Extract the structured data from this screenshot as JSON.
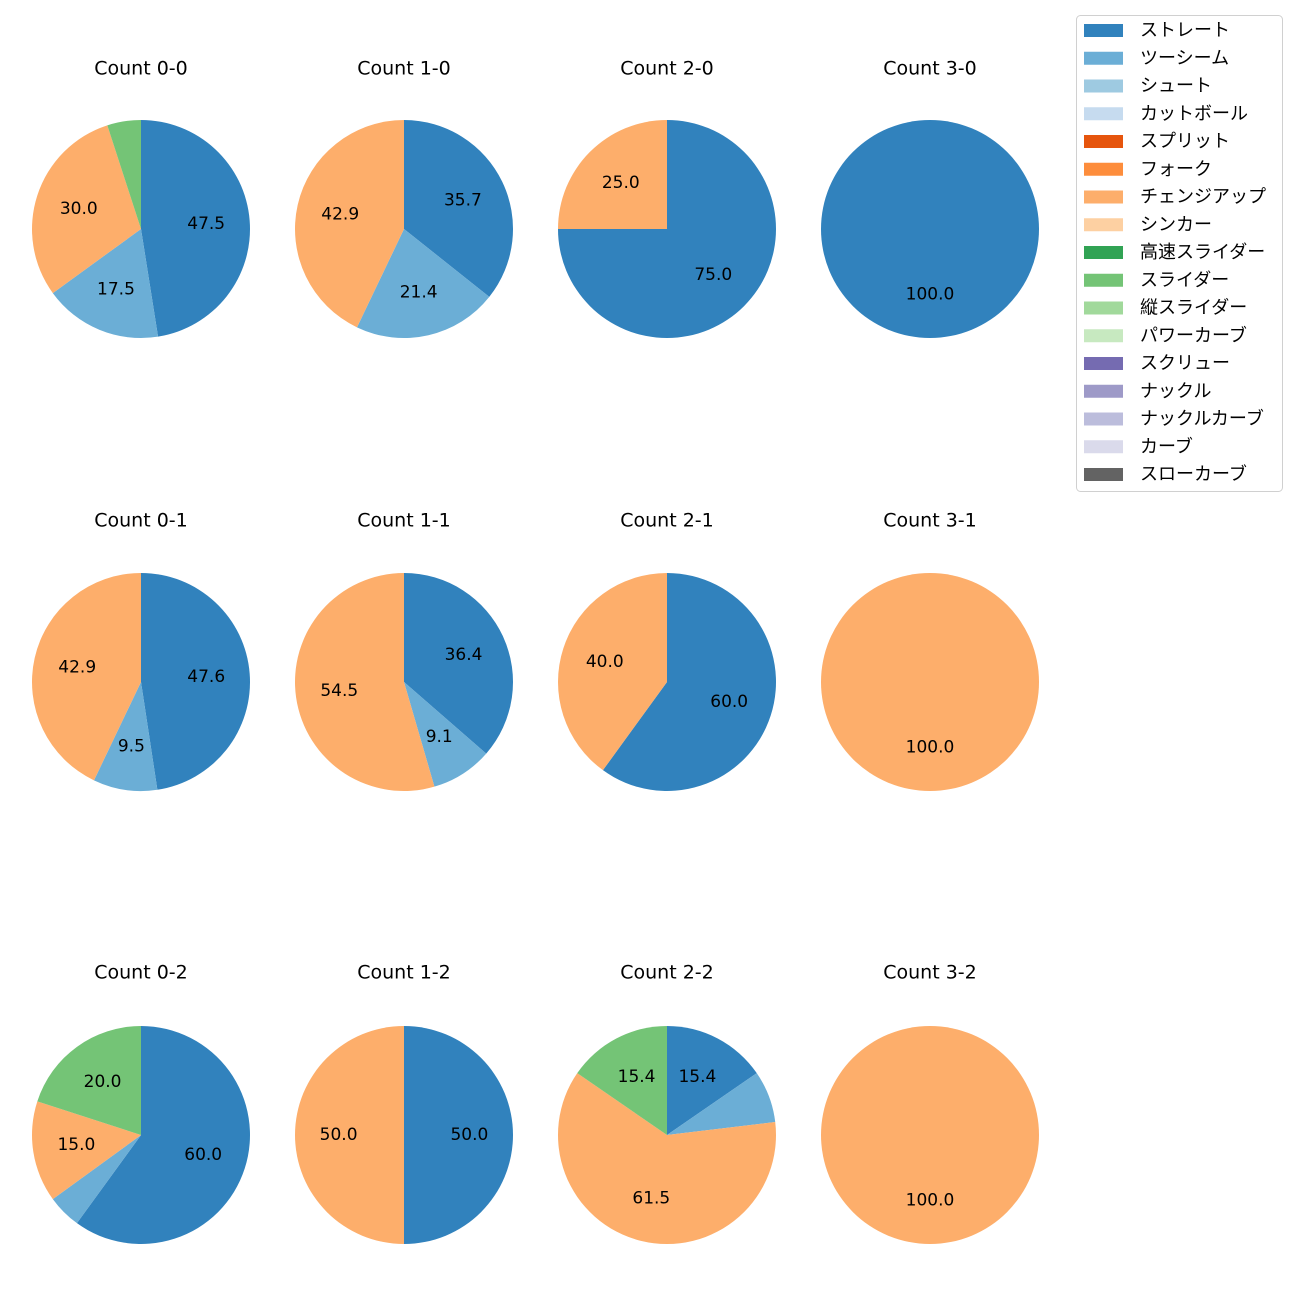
{
  "legend": [
    {
      "name": "ストレート",
      "color": "#3182bd"
    },
    {
      "name": "ツーシーム",
      "color": "#6baed6"
    },
    {
      "name": "シュート",
      "color": "#9ecae1"
    },
    {
      "name": "カットボール",
      "color": "#c6dbef"
    },
    {
      "name": "スプリット",
      "color": "#e6550d"
    },
    {
      "name": "フォーク",
      "color": "#fd8d3c"
    },
    {
      "name": "チェンジアップ",
      "color": "#fdae6b"
    },
    {
      "name": "シンカー",
      "color": "#fdd0a2"
    },
    {
      "name": "高速スライダー",
      "color": "#31a354"
    },
    {
      "name": "スライダー",
      "color": "#74c476"
    },
    {
      "name": "縦スライダー",
      "color": "#a1d99b"
    },
    {
      "name": "パワーカーブ",
      "color": "#c7e9c0"
    },
    {
      "name": "スクリュー",
      "color": "#756bb1"
    },
    {
      "name": "ナックル",
      "color": "#9e9ac8"
    },
    {
      "name": "ナックルカーブ",
      "color": "#bcbddc"
    },
    {
      "name": "カーブ",
      "color": "#dadaeb"
    },
    {
      "name": "スローカーブ",
      "color": "#636363"
    }
  ],
  "chart_data": [
    {
      "type": "pie",
      "title": "Count 0-0",
      "slices": [
        {
          "category": "ストレート",
          "value": 47.5,
          "label": "47.5"
        },
        {
          "category": "ツーシーム",
          "value": 17.5,
          "label": "17.5"
        },
        {
          "category": "チェンジアップ",
          "value": 30.0,
          "label": "30.0"
        },
        {
          "category": "スライダー",
          "value": 5.0,
          "label": ""
        }
      ]
    },
    {
      "type": "pie",
      "title": "Count 1-0",
      "slices": [
        {
          "category": "ストレート",
          "value": 35.7,
          "label": "35.7"
        },
        {
          "category": "ツーシーム",
          "value": 21.4,
          "label": "21.4"
        },
        {
          "category": "チェンジアップ",
          "value": 42.9,
          "label": "42.9"
        }
      ]
    },
    {
      "type": "pie",
      "title": "Count 2-0",
      "slices": [
        {
          "category": "ストレート",
          "value": 75.0,
          "label": "75.0"
        },
        {
          "category": "チェンジアップ",
          "value": 25.0,
          "label": "25.0"
        }
      ]
    },
    {
      "type": "pie",
      "title": "Count 3-0",
      "slices": [
        {
          "category": "ストレート",
          "value": 100.0,
          "label": "100.0"
        }
      ]
    },
    {
      "type": "pie",
      "title": "Count 0-1",
      "slices": [
        {
          "category": "ストレート",
          "value": 47.6,
          "label": "47.6"
        },
        {
          "category": "ツーシーム",
          "value": 9.5,
          "label": "9.5"
        },
        {
          "category": "チェンジアップ",
          "value": 42.9,
          "label": "42.9"
        }
      ]
    },
    {
      "type": "pie",
      "title": "Count 1-1",
      "slices": [
        {
          "category": "ストレート",
          "value": 36.4,
          "label": "36.4"
        },
        {
          "category": "ツーシーム",
          "value": 9.1,
          "label": "9.1"
        },
        {
          "category": "チェンジアップ",
          "value": 54.5,
          "label": "54.5"
        }
      ]
    },
    {
      "type": "pie",
      "title": "Count 2-1",
      "slices": [
        {
          "category": "ストレート",
          "value": 60.0,
          "label": "60.0"
        },
        {
          "category": "チェンジアップ",
          "value": 40.0,
          "label": "40.0"
        }
      ]
    },
    {
      "type": "pie",
      "title": "Count 3-1",
      "slices": [
        {
          "category": "チェンジアップ",
          "value": 100.0,
          "label": "100.0"
        }
      ]
    },
    {
      "type": "pie",
      "title": "Count 0-2",
      "slices": [
        {
          "category": "ストレート",
          "value": 60.0,
          "label": "60.0"
        },
        {
          "category": "ツーシーム",
          "value": 5.0,
          "label": ""
        },
        {
          "category": "チェンジアップ",
          "value": 15.0,
          "label": "15.0"
        },
        {
          "category": "スライダー",
          "value": 20.0,
          "label": "20.0"
        }
      ]
    },
    {
      "type": "pie",
      "title": "Count 1-2",
      "slices": [
        {
          "category": "ストレート",
          "value": 50.0,
          "label": "50.0"
        },
        {
          "category": "チェンジアップ",
          "value": 50.0,
          "label": "50.0"
        }
      ]
    },
    {
      "type": "pie",
      "title": "Count 2-2",
      "slices": [
        {
          "category": "ストレート",
          "value": 15.4,
          "label": "15.4"
        },
        {
          "category": "ツーシーム",
          "value": 7.7,
          "label": ""
        },
        {
          "category": "チェンジアップ",
          "value": 61.5,
          "label": "61.5"
        },
        {
          "category": "スライダー",
          "value": 15.4,
          "label": "15.4"
        }
      ]
    },
    {
      "type": "pie",
      "title": "Count 3-2",
      "slices": [
        {
          "category": "チェンジアップ",
          "value": 100.0,
          "label": "100.0"
        }
      ]
    }
  ]
}
